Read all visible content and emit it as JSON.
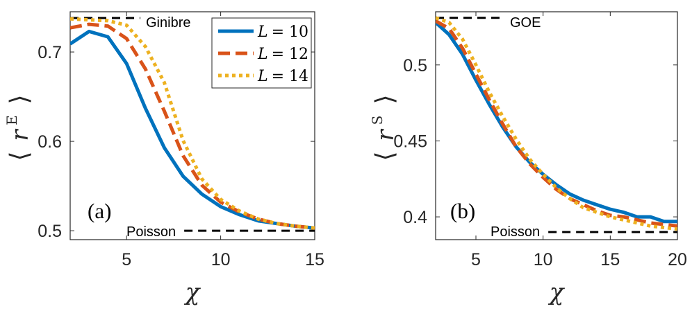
{
  "chart_data": [
    {
      "type": "line",
      "panel_label": "(a)",
      "xlabel": "χ",
      "ylabel": {
        "base": "r",
        "superscript": "E"
      },
      "xlim": [
        2,
        15
      ],
      "ylim": [
        0.49,
        0.745
      ],
      "xticks": [
        5,
        10,
        15
      ],
      "yticks": [
        0.5,
        0.6,
        0.7
      ],
      "xtick_labels": [
        "5",
        "10",
        "15"
      ],
      "ytick_labels": [
        "0.5",
        "0.6",
        "0.7"
      ],
      "reference_lines": [
        {
          "label": "Ginibre",
          "y": 0.738
        },
        {
          "label": "Poisson",
          "y": 0.5
        }
      ],
      "legend": {
        "position": "top-right",
        "prefix": "L",
        "entries": [
          "= 10",
          "= 12",
          "= 14"
        ]
      },
      "x": [
        2,
        3,
        4,
        5,
        6,
        7,
        8,
        9,
        10,
        11,
        12,
        13,
        14,
        15
      ],
      "series": [
        {
          "name": "L = 10",
          "color": "#0072BD",
          "style": "solid",
          "values": [
            0.709,
            0.723,
            0.717,
            0.687,
            0.637,
            0.593,
            0.561,
            0.541,
            0.527,
            0.518,
            0.511,
            0.508,
            0.505,
            0.503
          ]
        },
        {
          "name": "L = 12",
          "color": "#D95319",
          "style": "dashed",
          "values": [
            0.727,
            0.731,
            0.729,
            0.715,
            0.681,
            0.634,
            0.584,
            0.551,
            0.532,
            0.521,
            0.513,
            0.508,
            0.505,
            0.503
          ]
        },
        {
          "name": "L = 14",
          "color": "#EDB120",
          "style": "dotted",
          "values": [
            0.737,
            0.736,
            0.735,
            0.73,
            0.706,
            0.666,
            0.601,
            0.558,
            0.535,
            0.522,
            0.513,
            0.508,
            0.505,
            0.503
          ]
        }
      ]
    },
    {
      "type": "line",
      "panel_label": "(b)",
      "xlabel": "χ",
      "ylabel": {
        "base": "r",
        "superscript": "S"
      },
      "xlim": [
        2,
        20
      ],
      "ylim": [
        0.385,
        0.535
      ],
      "xticks": [
        5,
        10,
        15,
        20
      ],
      "yticks": [
        0.4,
        0.45,
        0.5
      ],
      "xtick_labels": [
        "5",
        "10",
        "15",
        "20"
      ],
      "ytick_labels": [
        "0.4",
        "0.45",
        "0.5"
      ],
      "reference_lines": [
        {
          "label": "GOE",
          "y": 0.531
        },
        {
          "label": "Poisson",
          "y": 0.39
        }
      ],
      "x": [
        2,
        3,
        4,
        5,
        6,
        7,
        8,
        9,
        10,
        11,
        12,
        13,
        14,
        15,
        16,
        17,
        18,
        19,
        20
      ],
      "series": [
        {
          "name": "L = 10",
          "color": "#0072BD",
          "style": "solid",
          "values": [
            0.528,
            0.52,
            0.507,
            0.49,
            0.474,
            0.459,
            0.446,
            0.436,
            0.428,
            0.421,
            0.415,
            0.411,
            0.408,
            0.405,
            0.403,
            0.4,
            0.4,
            0.397,
            0.397
          ]
        },
        {
          "name": "L = 12",
          "color": "#D95319",
          "style": "dashed",
          "values": [
            0.529,
            0.524,
            0.511,
            0.494,
            0.477,
            0.461,
            0.446,
            0.435,
            0.426,
            0.418,
            0.412,
            0.408,
            0.404,
            0.401,
            0.4,
            0.398,
            0.396,
            0.395,
            0.394
          ]
        },
        {
          "name": "L = 14",
          "color": "#EDB120",
          "style": "dotted",
          "values": [
            0.531,
            0.528,
            0.517,
            0.5,
            0.482,
            0.466,
            0.451,
            0.438,
            0.428,
            0.419,
            0.412,
            0.406,
            0.403,
            0.4,
            0.398,
            0.396,
            0.394,
            0.393,
            0.392
          ]
        }
      ]
    }
  ]
}
